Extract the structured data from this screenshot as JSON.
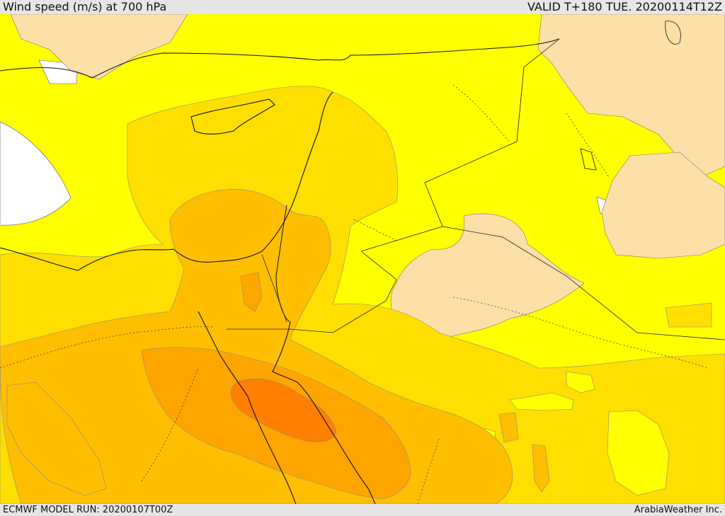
{
  "header": {
    "title": "Wind speed (m/s) at 700 hPa",
    "valid_time": "VALID T+180 TUE. 20200114T12Z"
  },
  "footer": {
    "model_run": "ECMWF MODEL RUN: 20200107T00Z",
    "credit": "ArabiaWeather Inc."
  },
  "legend": {
    "colors": {
      "no_data": "#ffffff",
      "calm": "#fde0a8",
      "light": "#ffff00",
      "moderate": "#ffdf00",
      "fresh": "#ffbf00",
      "strong": "#ffa500",
      "very_strong": "#ff7f00"
    }
  }
}
